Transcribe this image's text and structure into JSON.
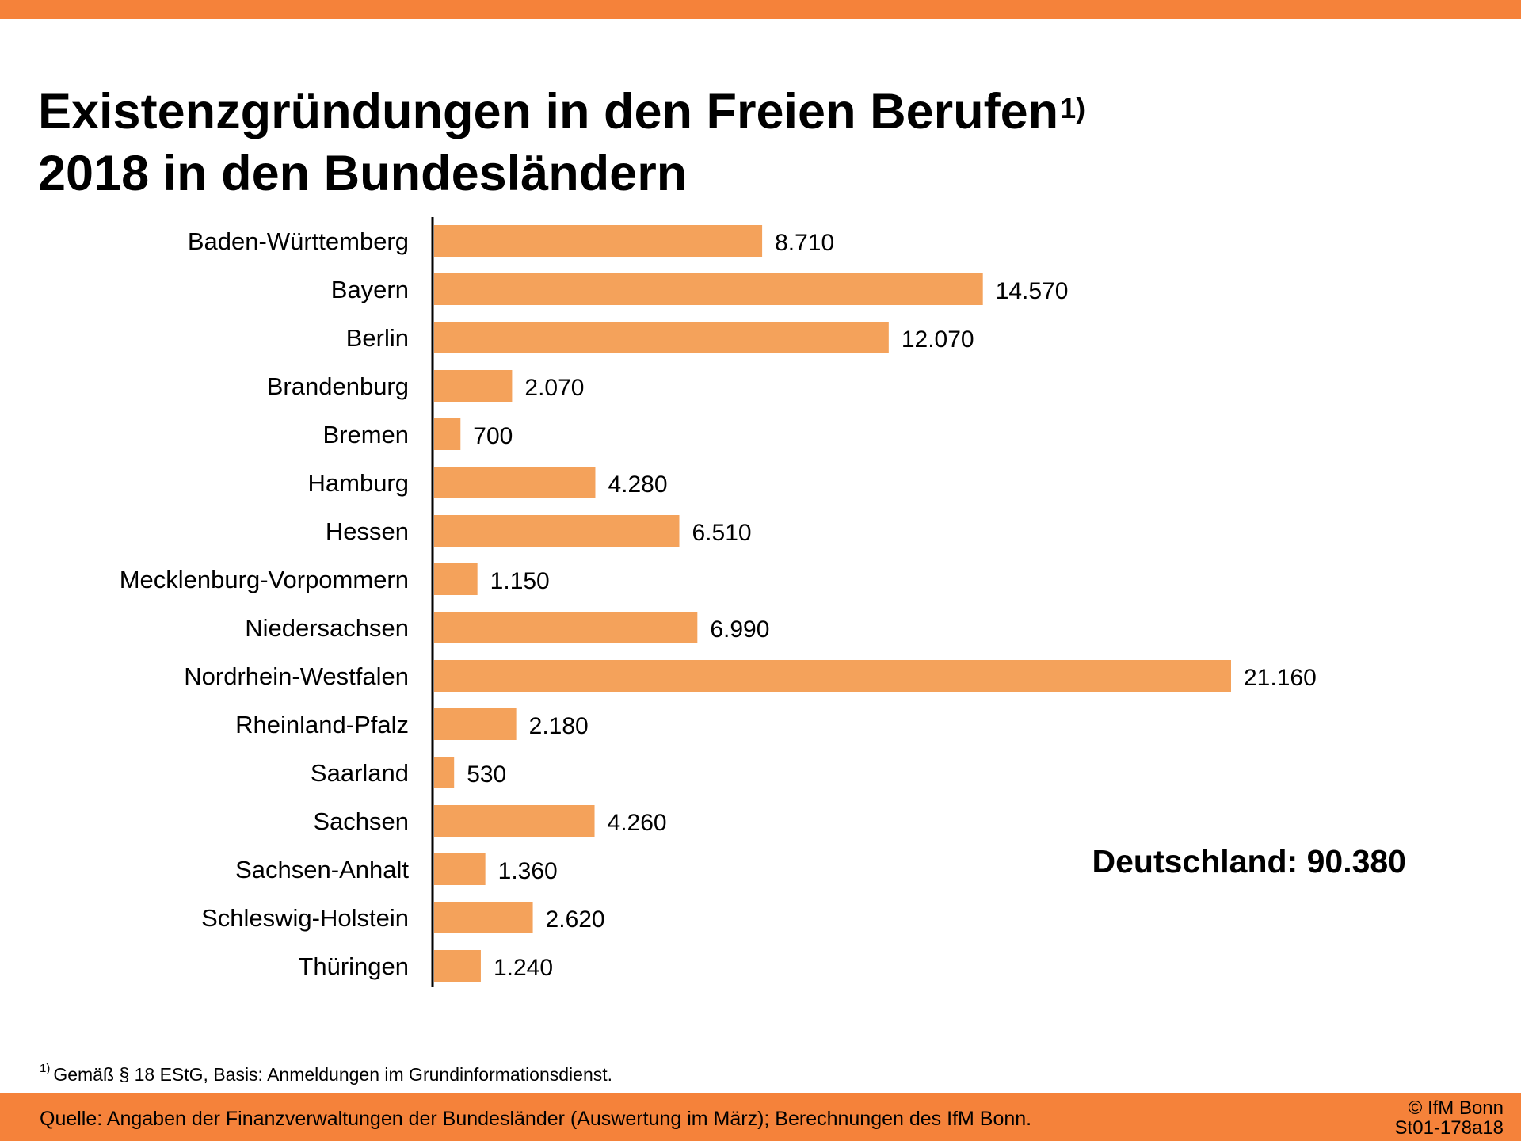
{
  "header": {
    "title_line1": "Existenzgründungen in den Freien Berufen",
    "title_sup": "1)",
    "title_line2": "2018 in den Bundesländern"
  },
  "colors": {
    "accent": "#f5823a",
    "bar": "#f4a25b",
    "axis": "#000000"
  },
  "chart_data": {
    "type": "bar",
    "orientation": "horizontal",
    "title": "Existenzgründungen in den Freien Berufen 2018 in den Bundesländern",
    "categories": [
      "Baden-Württemberg",
      "Bayern",
      "Berlin",
      "Brandenburg",
      "Bremen",
      "Hamburg",
      "Hessen",
      "Mecklenburg-Vorpommern",
      "Niedersachsen",
      "Nordrhein-Westfalen",
      "Rheinland-Pfalz",
      "Saarland",
      "Sachsen",
      "Sachsen-Anhalt",
      "Schleswig-Holstein",
      "Thüringen"
    ],
    "values": [
      8710,
      14570,
      12070,
      2070,
      700,
      4280,
      6510,
      1150,
      6990,
      21160,
      2180,
      530,
      4260,
      1360,
      2620,
      1240
    ],
    "value_labels": [
      "8.710",
      "14.570",
      "12.070",
      "2.070",
      "700",
      "4.280",
      "6.510",
      "1.150",
      "6.990",
      "21.160",
      "2.180",
      "530",
      "4.260",
      "1.360",
      "2.620",
      "1.240"
    ],
    "xlabel": "",
    "ylabel": "",
    "grid": false,
    "legend": "none"
  },
  "total": {
    "text": "Deutschland: 90.380"
  },
  "footnote": {
    "marker": "1)",
    "text": "Gemäß § 18 EStG, Basis: Anmeldungen im Grundinformationsdienst."
  },
  "footer": {
    "source": "Quelle: Angaben der Finanzverwaltungen der  Bundesländer (Auswertung im März); Berechnungen des IfM Bonn.",
    "copyright": "© IfM Bonn",
    "code": "St01-178a18"
  }
}
